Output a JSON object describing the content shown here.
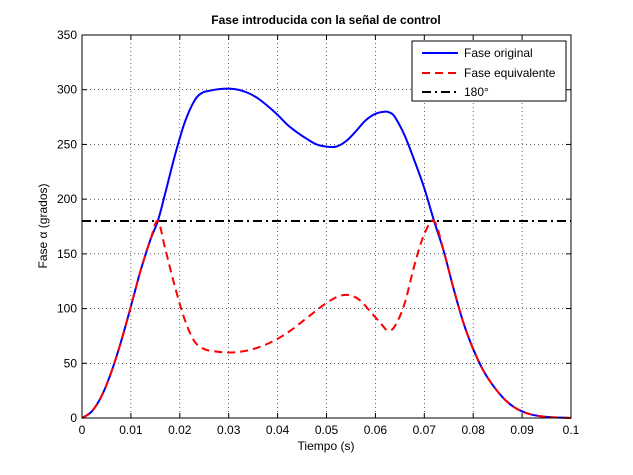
{
  "chart_data": {
    "type": "line",
    "title": "Fase introducida con la señal de control",
    "xlabel": "Tiempo (s)",
    "ylabel_prefix": "Fase ",
    "ylabel_symbol": "α",
    "ylabel_suffix": " (grados)",
    "xlim": [
      0,
      0.1
    ],
    "ylim": [
      0,
      350
    ],
    "xticks": [
      0,
      0.01,
      0.02,
      0.03,
      0.04,
      0.05,
      0.06,
      0.07,
      0.08,
      0.09,
      0.1
    ],
    "xtick_labels": [
      "0",
      "0.01",
      "0.02",
      "0.03",
      "0.04",
      "0.05",
      "0.06",
      "0.07",
      "0.08",
      "0.09",
      "0.1"
    ],
    "yticks": [
      0,
      50,
      100,
      150,
      200,
      250,
      300,
      350
    ],
    "ytick_labels": [
      "0",
      "50",
      "100",
      "150",
      "200",
      "250",
      "300",
      "350"
    ],
    "grid": true,
    "legend_position": "top-right",
    "series": [
      {
        "name": "Fase original",
        "color": "#0000ff",
        "style": "solid",
        "x": [
          0,
          0.002,
          0.004,
          0.006,
          0.008,
          0.01,
          0.012,
          0.014,
          0.0155,
          0.017,
          0.019,
          0.021,
          0.023,
          0.0245,
          0.026,
          0.028,
          0.03,
          0.032,
          0.034,
          0.036,
          0.038,
          0.04,
          0.042,
          0.044,
          0.046,
          0.048,
          0.05,
          0.052,
          0.054,
          0.056,
          0.058,
          0.06,
          0.062,
          0.063,
          0.064,
          0.066,
          0.068,
          0.07,
          0.072,
          0.074,
          0.076,
          0.078,
          0.08,
          0.082,
          0.084,
          0.086,
          0.088,
          0.09,
          0.092,
          0.094,
          0.096,
          0.098,
          0.1
        ],
        "y": [
          0,
          6,
          20,
          42,
          70,
          102,
          135,
          163,
          180,
          205,
          240,
          270,
          290,
          297,
          299,
          300.5,
          301,
          300,
          297,
          292,
          285,
          277,
          268,
          261,
          255,
          250,
          248,
          248,
          253,
          262,
          272,
          278,
          280,
          279,
          275,
          258,
          235,
          210,
          180,
          152,
          118,
          87,
          63,
          44,
          30,
          19,
          11,
          6,
          3,
          1.5,
          0.7,
          0.3,
          0
        ]
      },
      {
        "name": "Fase equivalente",
        "color": "#ff0000",
        "style": "dashed",
        "x": [
          0,
          0.002,
          0.004,
          0.006,
          0.008,
          0.01,
          0.012,
          0.014,
          0.0155,
          0.017,
          0.019,
          0.021,
          0.023,
          0.025,
          0.027,
          0.029,
          0.031,
          0.033,
          0.035,
          0.037,
          0.039,
          0.041,
          0.043,
          0.045,
          0.047,
          0.049,
          0.051,
          0.053,
          0.055,
          0.057,
          0.059,
          0.061,
          0.0625,
          0.064,
          0.066,
          0.068,
          0.07,
          0.072,
          0.074,
          0.076,
          0.078,
          0.08,
          0.082,
          0.084,
          0.086,
          0.088,
          0.09,
          0.092,
          0.094,
          0.096,
          0.098,
          0.1
        ],
        "y": [
          0,
          6,
          20,
          42,
          70,
          102,
          135,
          163,
          180,
          155,
          120,
          90,
          70,
          63,
          61,
          60,
          60,
          61,
          63,
          66,
          70,
          75,
          81,
          88,
          95,
          102,
          108,
          112,
          112,
          107,
          97,
          87,
          80,
          84,
          105,
          140,
          168,
          180,
          152,
          118,
          87,
          63,
          44,
          30,
          19,
          11,
          6,
          3,
          1.5,
          0.7,
          0.3,
          0
        ]
      },
      {
        "name": "180°",
        "color": "#000000",
        "style": "dashdot",
        "x": [
          0,
          0.1
        ],
        "y": [
          180,
          180
        ]
      }
    ]
  }
}
